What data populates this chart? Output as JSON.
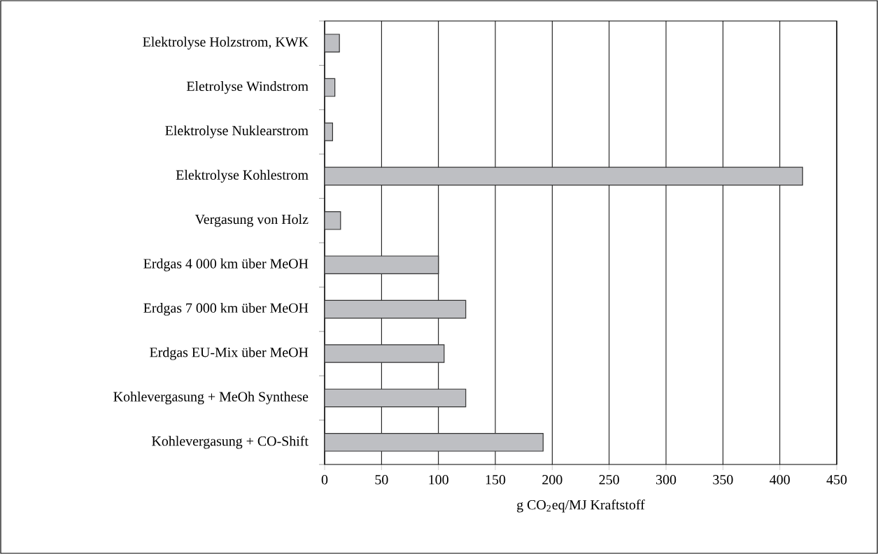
{
  "chart_data": {
    "type": "bar",
    "orientation": "horizontal",
    "xlabel": "g CO$_{2}$eq/MJ Kraftstoff",
    "categories": [
      "Elektrolyse Holzstrom, KWK",
      "Eletrolyse Windstrom",
      "Elektrolyse Nuklearstrom",
      "Elektrolyse Kohlestrom",
      "Vergasung von Holz",
      "Erdgas 4 000 km über MeOH",
      "Erdgas 7 000 km über MeOH",
      "Erdgas EU-Mix über MeOH",
      "Kohlevergasung + MeOh Synthese",
      "Kohlevergasung + CO-Shift"
    ],
    "values": [
      13,
      9,
      7,
      420,
      14,
      100,
      124,
      105,
      124,
      192
    ],
    "color": "#bebfc3",
    "xlim": [
      0,
      450
    ],
    "xticks": [
      0,
      50,
      100,
      150,
      200,
      250,
      300,
      350,
      400,
      450
    ],
    "grid": "x"
  }
}
